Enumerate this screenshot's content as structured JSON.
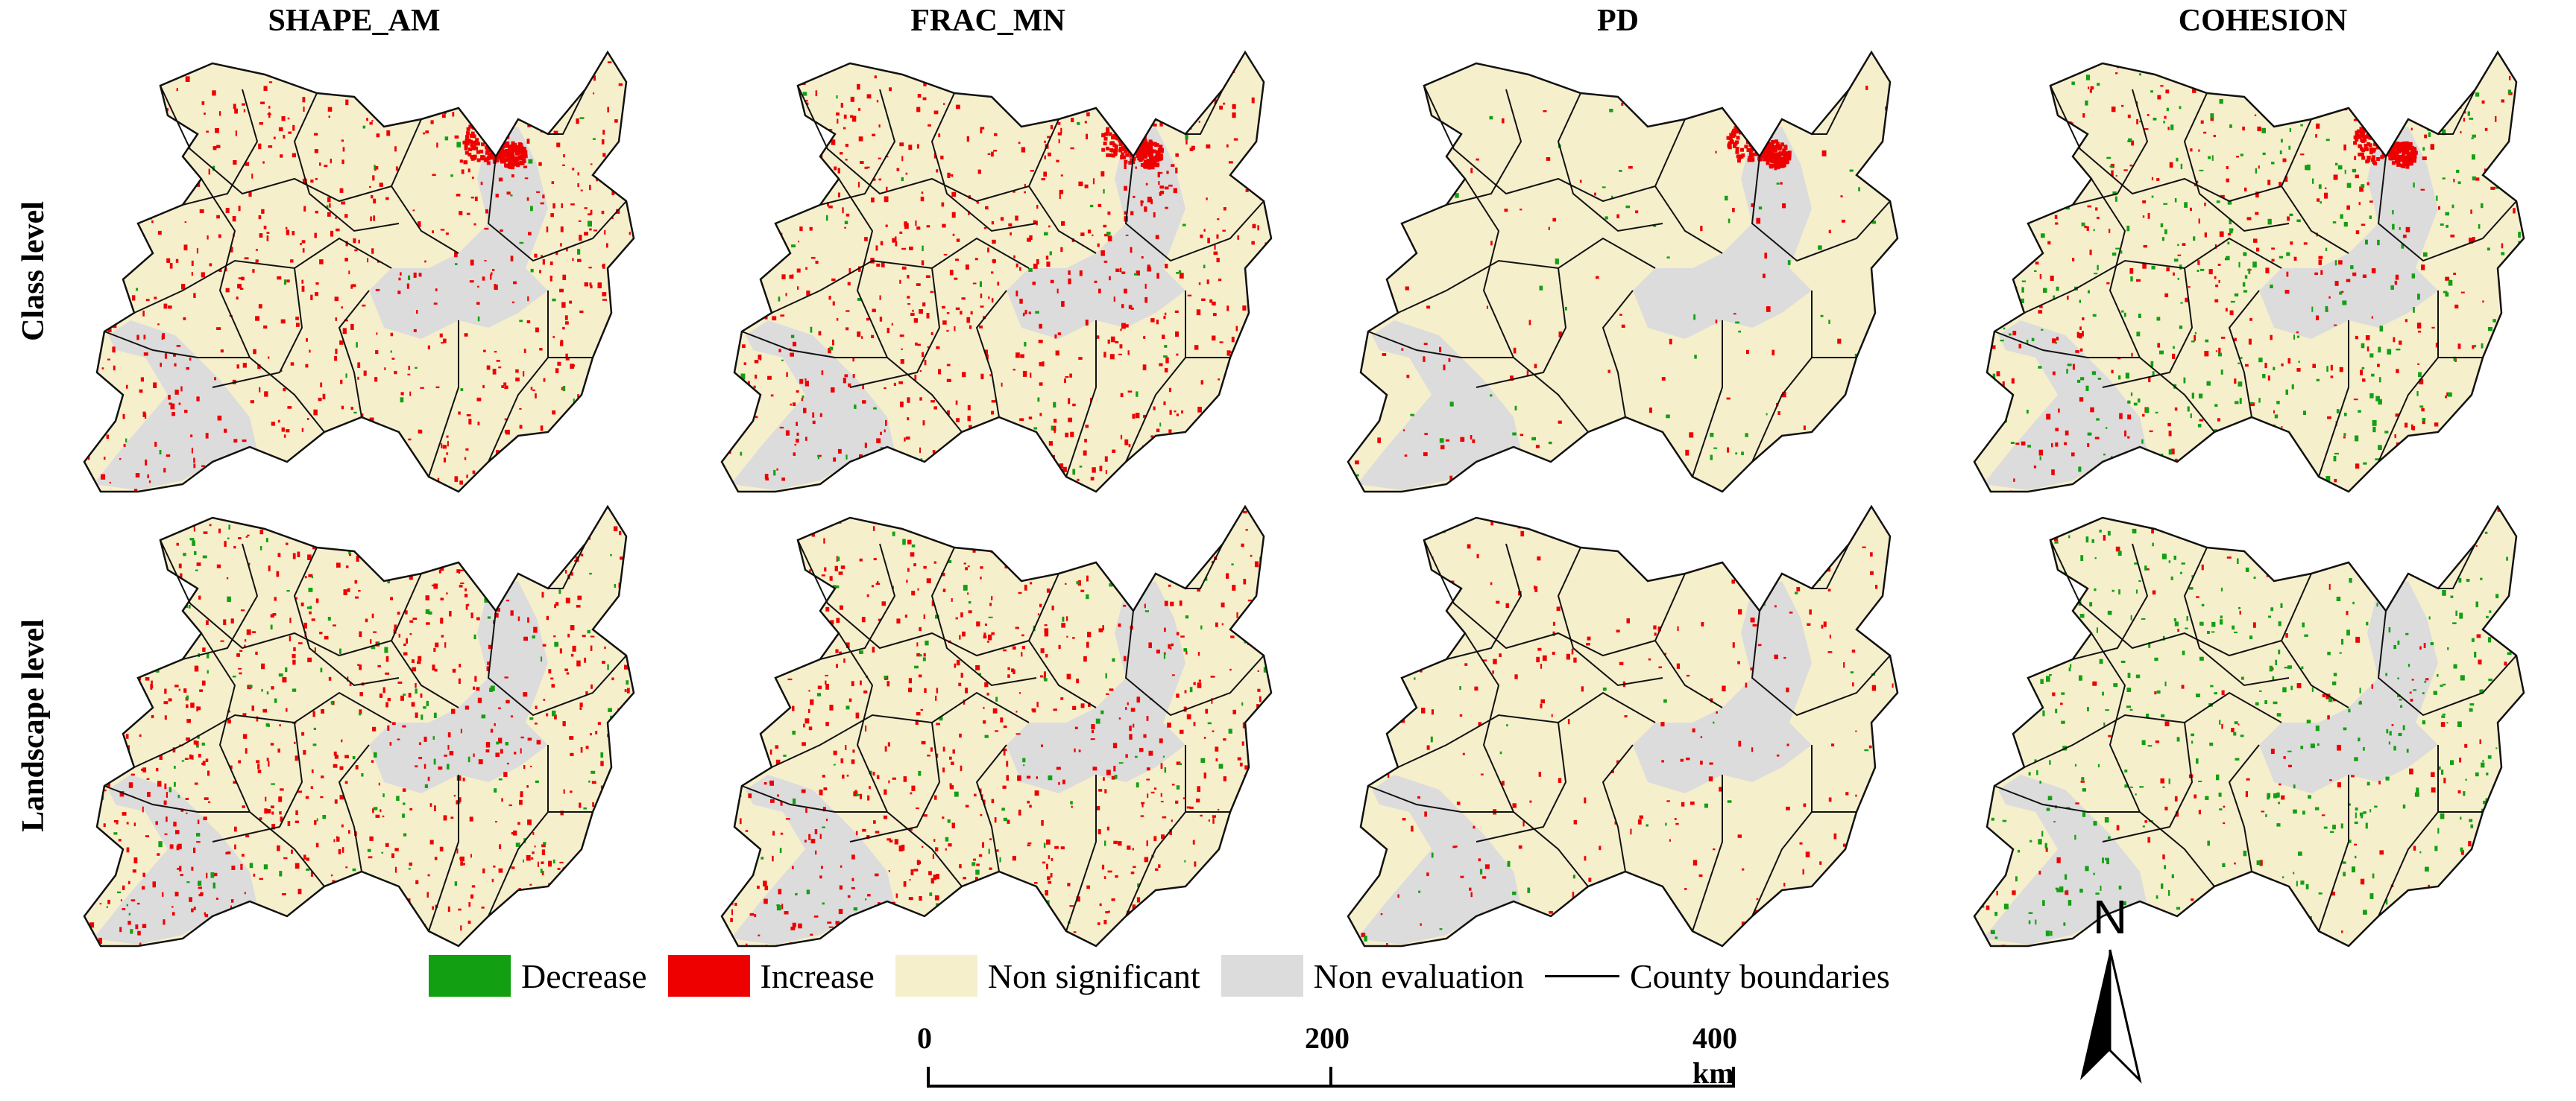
{
  "columns": [
    "SHAPE_AM",
    "FRAC_MN",
    "PD",
    "COHESION"
  ],
  "rows": [
    "Class level",
    "Landscape level"
  ],
  "legend": {
    "items": [
      {
        "label": "Decrease",
        "color": "#12a012"
      },
      {
        "label": "Increase",
        "color": "#ee0000"
      },
      {
        "label": "Non significant",
        "color": "#f6efcc"
      },
      {
        "label": "Non evaluation",
        "color": "#dcdcdc"
      }
    ],
    "boundary_label": "County boundaries"
  },
  "scale": {
    "ticks": [
      "0",
      "200",
      "400 km"
    ]
  },
  "north_label": "N",
  "panels": [
    {
      "column": "SHAPE_AM",
      "row": "Class level",
      "increase_density": 0.33,
      "decrease_density": 0.02,
      "hotspot": true
    },
    {
      "column": "FRAC_MN",
      "row": "Class level",
      "increase_density": 0.35,
      "decrease_density": 0.03,
      "hotspot": true
    },
    {
      "column": "PD",
      "row": "Class level",
      "increase_density": 0.05,
      "decrease_density": 0.03,
      "hotspot": true
    },
    {
      "column": "COHESION",
      "row": "Class level",
      "increase_density": 0.18,
      "decrease_density": 0.18,
      "hotspot": true
    },
    {
      "column": "SHAPE_AM",
      "row": "Landscape level",
      "increase_density": 0.35,
      "decrease_density": 0.08,
      "hotspot": false
    },
    {
      "column": "FRAC_MN",
      "row": "Landscape level",
      "increase_density": 0.33,
      "decrease_density": 0.06,
      "hotspot": false
    },
    {
      "column": "PD",
      "row": "Landscape level",
      "increase_density": 0.12,
      "decrease_density": 0.02,
      "hotspot": false
    },
    {
      "column": "COHESION",
      "row": "Landscape level",
      "increase_density": 0.07,
      "decrease_density": 0.22,
      "hotspot": false
    }
  ]
}
